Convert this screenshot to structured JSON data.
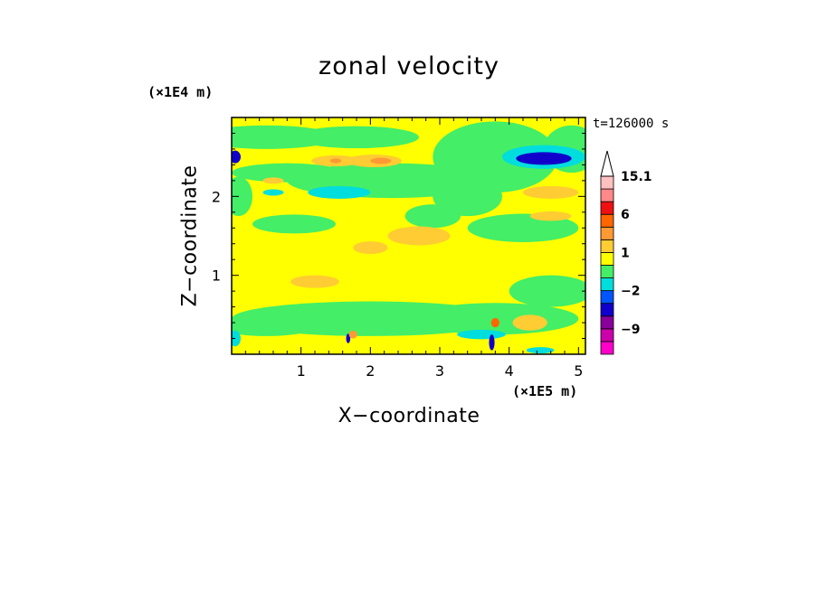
{
  "chart_data": {
    "type": "heatmap",
    "title": "zonal velocity",
    "xlabel": "X−coordinate",
    "ylabel": "Z−coordinate",
    "x_unit_label": "(×1E5 m)",
    "y_unit_label": "(×1E4 m)",
    "time_label": "t=126000 s",
    "xlim": [
      0,
      5.1
    ],
    "ylim": [
      0,
      3.0
    ],
    "x_ticks": [
      1,
      2,
      3,
      4,
      5
    ],
    "y_ticks": [
      1,
      2
    ],
    "x_tick_labels": [
      "1",
      "2",
      "3",
      "4",
      "5"
    ],
    "y_tick_labels": [
      "1",
      "2"
    ],
    "colorbar": {
      "levels": [
        -15,
        -12,
        -9,
        -6,
        -3,
        -2,
        -1,
        0,
        1,
        2,
        3,
        6,
        9,
        12,
        15.1
      ],
      "colors": [
        "#ff00cc",
        "#cc00aa",
        "#880099",
        "#1100cc",
        "#0055ff",
        "#00dddd",
        "#44ee66",
        "#ffff00",
        "#ffcc33",
        "#ff9933",
        "#ff6600",
        "#ee1111",
        "#ff8888",
        "#ffc0c0"
      ],
      "labels": [
        {
          "value": 15.1,
          "text": "15.1"
        },
        {
          "value": 6,
          "text": "6"
        },
        {
          "value": 1,
          "text": "1"
        },
        {
          "value": -2,
          "text": "−2"
        },
        {
          "value": -9,
          "text": "−9"
        }
      ],
      "extend": "max"
    },
    "background_value": 0.5,
    "regions": [
      {
        "x": 0.5,
        "z": 2.75,
        "rx": 1.0,
        "rz": 0.15,
        "v": -0.5
      },
      {
        "x": 1.8,
        "z": 2.75,
        "rx": 0.9,
        "rz": 0.14,
        "v": -0.5
      },
      {
        "x": 3.8,
        "z": 2.5,
        "rx": 0.9,
        "rz": 0.45,
        "v": -0.5
      },
      {
        "x": 4.9,
        "z": 2.6,
        "rx": 0.4,
        "rz": 0.3,
        "v": -0.5
      },
      {
        "x": 2.3,
        "z": 2.2,
        "rx": 1.5,
        "rz": 0.22,
        "v": -0.5
      },
      {
        "x": 0.8,
        "z": 2.3,
        "rx": 0.8,
        "rz": 0.12,
        "v": -0.5
      },
      {
        "x": 3.4,
        "z": 2.0,
        "rx": 0.5,
        "rz": 0.25,
        "v": -0.5
      },
      {
        "x": 4.2,
        "z": 1.6,
        "rx": 0.8,
        "rz": 0.18,
        "v": -0.5
      },
      {
        "x": 0.9,
        "z": 1.65,
        "rx": 0.6,
        "rz": 0.12,
        "v": -0.5
      },
      {
        "x": 2.9,
        "z": 1.75,
        "rx": 0.4,
        "rz": 0.15,
        "v": -0.5
      },
      {
        "x": 4.6,
        "z": 0.8,
        "rx": 0.6,
        "rz": 0.2,
        "v": -0.5
      },
      {
        "x": 2.0,
        "z": 0.45,
        "rx": 2.0,
        "rz": 0.22,
        "v": -0.5
      },
      {
        "x": 3.8,
        "z": 0.45,
        "rx": 1.2,
        "rz": 0.2,
        "v": -0.5
      },
      {
        "x": 0.5,
        "z": 0.35,
        "rx": 0.7,
        "rz": 0.12,
        "v": -0.5
      },
      {
        "x": 0.1,
        "z": 2.0,
        "rx": 0.2,
        "rz": 0.25,
        "v": -0.5
      },
      {
        "x": 1.5,
        "z": 2.45,
        "rx": 0.35,
        "rz": 0.07,
        "v": 1.5
      },
      {
        "x": 2.05,
        "z": 2.45,
        "rx": 0.4,
        "rz": 0.08,
        "v": 1.6
      },
      {
        "x": 2.15,
        "z": 2.45,
        "rx": 0.15,
        "rz": 0.04,
        "v": 2.5
      },
      {
        "x": 1.5,
        "z": 2.45,
        "rx": 0.08,
        "rz": 0.03,
        "v": 2.5
      },
      {
        "x": 2.7,
        "z": 1.5,
        "rx": 0.45,
        "rz": 0.12,
        "v": 1.4
      },
      {
        "x": 2.0,
        "z": 1.35,
        "rx": 0.25,
        "rz": 0.08,
        "v": 1.4
      },
      {
        "x": 1.2,
        "z": 0.92,
        "rx": 0.35,
        "rz": 0.08,
        "v": 1.5
      },
      {
        "x": 4.6,
        "z": 2.05,
        "rx": 0.4,
        "rz": 0.08,
        "v": 1.5
      },
      {
        "x": 4.6,
        "z": 1.75,
        "rx": 0.3,
        "rz": 0.06,
        "v": 1.3
      },
      {
        "x": 4.3,
        "z": 0.4,
        "rx": 0.25,
        "rz": 0.1,
        "v": 1.4
      },
      {
        "x": 0.6,
        "z": 2.2,
        "rx": 0.15,
        "rz": 0.04,
        "v": 1.3
      },
      {
        "x": 1.55,
        "z": 2.05,
        "rx": 0.45,
        "rz": 0.08,
        "v": -1.5
      },
      {
        "x": 0.6,
        "z": 2.05,
        "rx": 0.15,
        "rz": 0.04,
        "v": -1.5
      },
      {
        "x": 4.5,
        "z": 2.5,
        "rx": 0.6,
        "rz": 0.15,
        "v": -1.6
      },
      {
        "x": 4.5,
        "z": 2.48,
        "rx": 0.4,
        "rz": 0.08,
        "v": -4.0
      },
      {
        "x": 0.05,
        "z": 2.5,
        "rx": 0.08,
        "rz": 0.08,
        "v": -4.0
      },
      {
        "x": 0.05,
        "z": 0.2,
        "rx": 0.08,
        "rz": 0.1,
        "v": -1.5
      },
      {
        "x": 3.6,
        "z": 0.25,
        "rx": 0.35,
        "rz": 0.06,
        "v": -1.5
      },
      {
        "x": 3.75,
        "z": 0.15,
        "rx": 0.04,
        "rz": 0.1,
        "v": -4.0
      },
      {
        "x": 1.68,
        "z": 0.2,
        "rx": 0.03,
        "rz": 0.06,
        "v": -4.0
      },
      {
        "x": 4.45,
        "z": 0.05,
        "rx": 0.2,
        "rz": 0.04,
        "v": -1.5
      },
      {
        "x": 3.8,
        "z": 0.4,
        "rx": 0.06,
        "rz": 0.06,
        "v": 3.5
      },
      {
        "x": 1.75,
        "z": 0.25,
        "rx": 0.06,
        "rz": 0.05,
        "v": 2.5
      }
    ]
  }
}
